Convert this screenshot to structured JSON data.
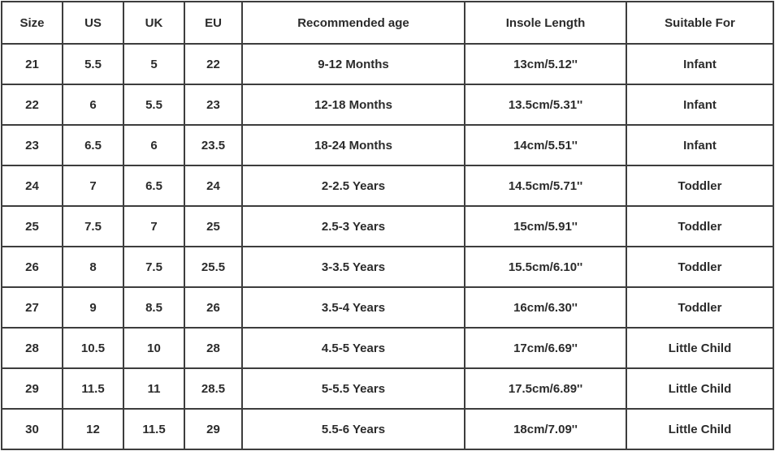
{
  "colors": {
    "background": "#ffffff",
    "border": "#3d3d3d",
    "text": "#2b2b2b"
  },
  "table": {
    "columns": [
      "Size",
      "US",
      "UK",
      "EU",
      "Recommended age",
      "Insole Length",
      "Suitable For"
    ],
    "rows": [
      [
        "21",
        "5.5",
        "5",
        "22",
        "9-12 Months",
        "13cm/5.12''",
        "Infant"
      ],
      [
        "22",
        "6",
        "5.5",
        "23",
        "12-18 Months",
        "13.5cm/5.31''",
        "Infant"
      ],
      [
        "23",
        "6.5",
        "6",
        "23.5",
        "18-24 Months",
        "14cm/5.51''",
        "Infant"
      ],
      [
        "24",
        "7",
        "6.5",
        "24",
        "2-2.5 Years",
        "14.5cm/5.71''",
        "Toddler"
      ],
      [
        "25",
        "7.5",
        "7",
        "25",
        "2.5-3 Years",
        "15cm/5.91''",
        "Toddler"
      ],
      [
        "26",
        "8",
        "7.5",
        "25.5",
        "3-3.5 Years",
        "15.5cm/6.10''",
        "Toddler"
      ],
      [
        "27",
        "9",
        "8.5",
        "26",
        "3.5-4 Years",
        "16cm/6.30''",
        "Toddler"
      ],
      [
        "28",
        "10.5",
        "10",
        "28",
        "4.5-5 Years",
        "17cm/6.69''",
        "Little Child"
      ],
      [
        "29",
        "11.5",
        "11",
        "28.5",
        "5-5.5 Years",
        "17.5cm/6.89''",
        "Little Child"
      ],
      [
        "30",
        "12",
        "11.5",
        "29",
        "5.5-6 Years",
        "18cm/7.09''",
        "Little Child"
      ]
    ]
  },
  "chart_data": {
    "type": "table",
    "title": "",
    "columns": [
      "Size",
      "US",
      "UK",
      "EU",
      "Recommended age",
      "Insole Length",
      "Suitable For"
    ],
    "rows": [
      [
        "21",
        "5.5",
        "5",
        "22",
        "9-12 Months",
        "13cm/5.12''",
        "Infant"
      ],
      [
        "22",
        "6",
        "5.5",
        "23",
        "12-18 Months",
        "13.5cm/5.31''",
        "Infant"
      ],
      [
        "23",
        "6.5",
        "6",
        "23.5",
        "18-24 Months",
        "14cm/5.51''",
        "Infant"
      ],
      [
        "24",
        "7",
        "6.5",
        "24",
        "2-2.5 Years",
        "14.5cm/5.71''",
        "Toddler"
      ],
      [
        "25",
        "7.5",
        "7",
        "25",
        "2.5-3 Years",
        "15cm/5.91''",
        "Toddler"
      ],
      [
        "26",
        "8",
        "7.5",
        "25.5",
        "3-3.5 Years",
        "15.5cm/6.10''",
        "Toddler"
      ],
      [
        "27",
        "9",
        "8.5",
        "26",
        "3.5-4 Years",
        "16cm/6.30''",
        "Toddler"
      ],
      [
        "28",
        "10.5",
        "10",
        "28",
        "4.5-5 Years",
        "17cm/6.69''",
        "Little Child"
      ],
      [
        "29",
        "11.5",
        "11",
        "28.5",
        "5-5.5 Years",
        "17.5cm/6.89''",
        "Little Child"
      ],
      [
        "30",
        "12",
        "11.5",
        "29",
        "5.5-6 Years",
        "18cm/7.09''",
        "Little Child"
      ]
    ]
  }
}
